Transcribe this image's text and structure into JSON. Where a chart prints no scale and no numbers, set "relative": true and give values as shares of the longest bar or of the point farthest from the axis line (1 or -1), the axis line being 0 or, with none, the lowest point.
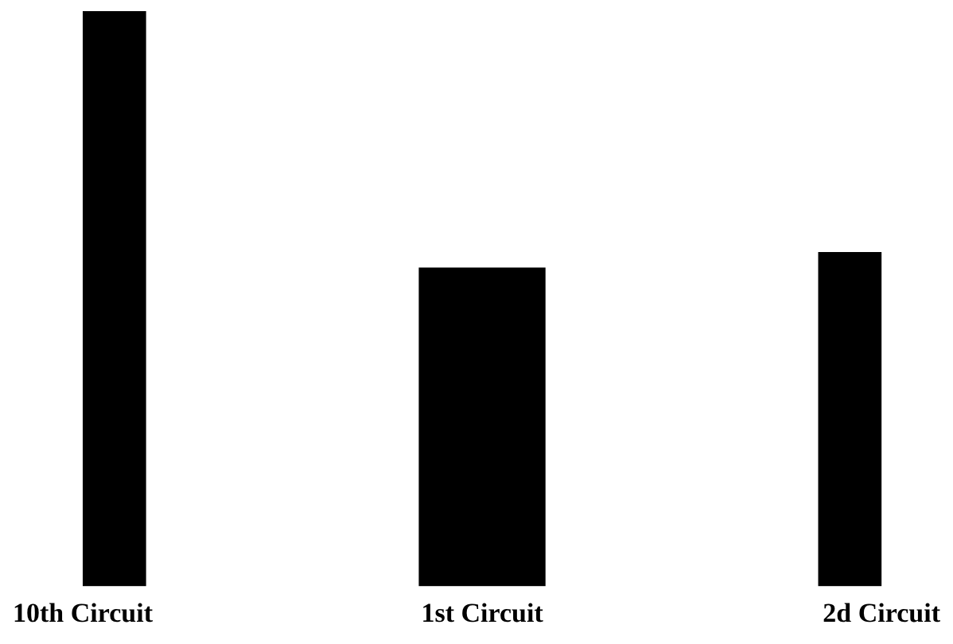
{
  "chart_data": {
    "type": "bar",
    "relative": true,
    "categories": [
      "10th Circuit",
      "1st Circuit",
      "2d Circuit"
    ],
    "values": [
      1,
      0.553,
      0.58
    ],
    "color": "#000000",
    "grid": false,
    "legend": false
  }
}
